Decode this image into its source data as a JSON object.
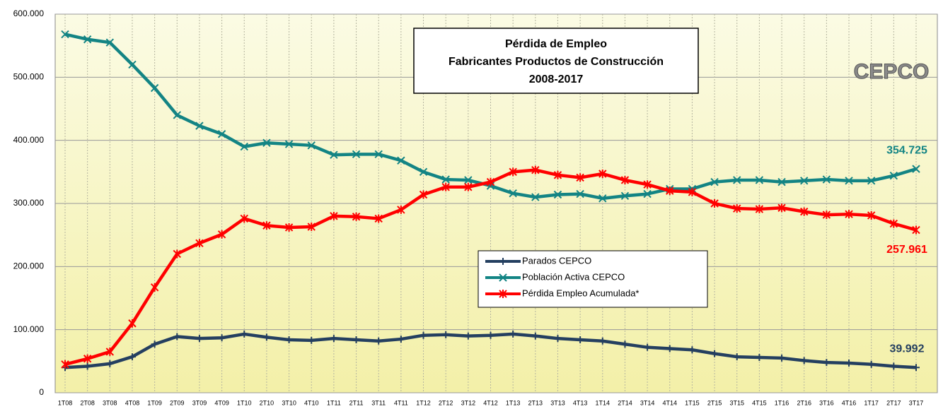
{
  "chart_data": {
    "type": "line",
    "title": [
      "Pérdida de Empleo",
      "Fabricantes Productos de Construcción",
      "2008-2017"
    ],
    "logo": "CEPCO",
    "categories": [
      "1T08",
      "2T08",
      "3T08",
      "4T08",
      "1T09",
      "2T09",
      "3T09",
      "4T09",
      "1T10",
      "2T10",
      "3T10",
      "4T10",
      "1T11",
      "2T11",
      "3T11",
      "4T11",
      "1T12",
      "2T12",
      "3T12",
      "4T12",
      "1T13",
      "2T13",
      "3T13",
      "4T13",
      "1T14",
      "2T14",
      "3T14",
      "4T14",
      "1T15",
      "2T15",
      "3T15",
      "4T15",
      "1T16",
      "2T16",
      "3T16",
      "4T16",
      "1T17",
      "2T17",
      "3T17"
    ],
    "series": [
      {
        "name": "Parados CEPCO",
        "color": "#243f60",
        "marker": "plus",
        "values": [
          40000,
          42000,
          46000,
          57000,
          77000,
          89000,
          86000,
          87000,
          93000,
          88000,
          84000,
          83000,
          86000,
          84000,
          82000,
          85000,
          91000,
          92000,
          90000,
          91000,
          93000,
          90000,
          86000,
          84000,
          82000,
          77000,
          72000,
          70000,
          68000,
          62000,
          57000,
          56000,
          55000,
          51000,
          48000,
          47000,
          45000,
          42000,
          39992
        ]
      },
      {
        "name": "Población Activa CEPCO",
        "color": "#138484",
        "marker": "x",
        "values": [
          568000,
          560000,
          555000,
          520000,
          483000,
          440000,
          423000,
          410000,
          390000,
          396000,
          394000,
          392000,
          377000,
          378000,
          378000,
          368000,
          350000,
          338000,
          337000,
          328000,
          316000,
          310000,
          314000,
          315000,
          308000,
          312000,
          315000,
          323000,
          323000,
          334000,
          337000,
          337000,
          334000,
          336000,
          338000,
          336000,
          336000,
          344000,
          354725
        ]
      },
      {
        "name": "Pérdida Empleo Acumulada*",
        "color": "#ff0000",
        "marker": "star",
        "values": [
          45000,
          54000,
          65000,
          110000,
          167000,
          220000,
          237000,
          251000,
          276000,
          265000,
          262000,
          263000,
          280000,
          279000,
          276000,
          290000,
          314000,
          326000,
          326000,
          334000,
          350000,
          353000,
          345000,
          341000,
          347000,
          337000,
          330000,
          320000,
          318000,
          300000,
          292000,
          291000,
          293000,
          287000,
          282000,
          283000,
          281000,
          268000,
          257961
        ]
      }
    ],
    "end_labels": [
      "39.992",
      "354.725",
      "257.961"
    ],
    "ylim": [
      0,
      600000
    ],
    "yticks": [
      0,
      {
        "value": 100000,
        "label": "100.000"
      },
      {
        "value": 200000,
        "label": "200.000"
      },
      {
        "value": 300000,
        "label": "300.000"
      },
      {
        "value": 400000,
        "label": "400.000"
      },
      {
        "value": 500000,
        "label": "500.000"
      },
      {
        "value": 600000,
        "label": "600.000"
      }
    ],
    "grid": true
  }
}
